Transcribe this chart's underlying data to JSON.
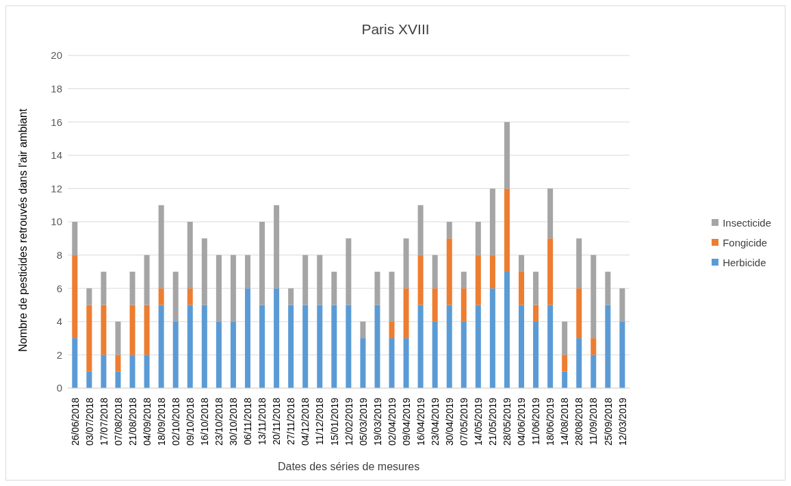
{
  "chart_data": {
    "type": "bar",
    "stacked": true,
    "title": "Paris XVIII",
    "xlabel": "Dates des séries de mesures",
    "ylabel": "Nombre de pesticides retrouvés dans l'air ambiant",
    "categories": [
      "26/06/2018",
      "03/07/2018",
      "17/07/2018",
      "07/08/2018",
      "21/08/2018",
      "04/09/2018",
      "18/09/2018",
      "02/10/2018",
      "09/10/2018",
      "16/10/2018",
      "23/10/2018",
      "30/10/2018",
      "06/11/2018",
      "13/11/2018",
      "20/11/2018",
      "27/11/2018",
      "04/12/2018",
      "11/12/2018",
      "15/01/2019",
      "12/02/2019",
      "05/03/2019",
      "19/03/2019",
      "02/04/2019",
      "09/04/2019",
      "16/04/2019",
      "23/04/2019",
      "30/04/2019",
      "07/05/2019",
      "14/05/2019",
      "21/05/2019",
      "28/05/2019",
      "04/06/2019",
      "11/06/2019",
      "18/06/2019",
      "14/08/2018",
      "28/08/2018",
      "11/09/2018",
      "25/09/2018",
      "12/03/2019"
    ],
    "series": [
      {
        "name": "Herbicide",
        "color": "#5b9bd5",
        "values": [
          3,
          1,
          2,
          1,
          2,
          2,
          5,
          4,
          5,
          5,
          4,
          4,
          6,
          5,
          6,
          5,
          5,
          5,
          5,
          5,
          3,
          5,
          3,
          3,
          5,
          4,
          5,
          4,
          5,
          6,
          7,
          5,
          4,
          5,
          1,
          3,
          2,
          5,
          4
        ]
      },
      {
        "name": "Fongicide",
        "color": "#ed7d31",
        "values": [
          5,
          4,
          3,
          1,
          3,
          3,
          1,
          0,
          1,
          0,
          0,
          0,
          0,
          0,
          0,
          0,
          0,
          0,
          0,
          0,
          0,
          0,
          1,
          3,
          3,
          2,
          4,
          2,
          3,
          2,
          5,
          2,
          1,
          4,
          1,
          3,
          1,
          0,
          0
        ]
      },
      {
        "name": "Insecticide",
        "color": "#a5a5a5",
        "values": [
          2,
          1,
          2,
          2,
          2,
          3,
          5,
          3,
          4,
          4,
          4,
          4,
          2,
          5,
          5,
          1,
          3,
          3,
          2,
          4,
          1,
          2,
          3,
          3,
          3,
          2,
          1,
          1,
          2,
          4,
          4,
          1,
          2,
          3,
          2,
          3,
          5,
          2,
          2
        ]
      }
    ],
    "ylim": [
      0,
      20
    ],
    "yticks": [
      0,
      2,
      4,
      6,
      8,
      10,
      12,
      14,
      16,
      18,
      20
    ],
    "grid": "y",
    "legend": "right"
  }
}
